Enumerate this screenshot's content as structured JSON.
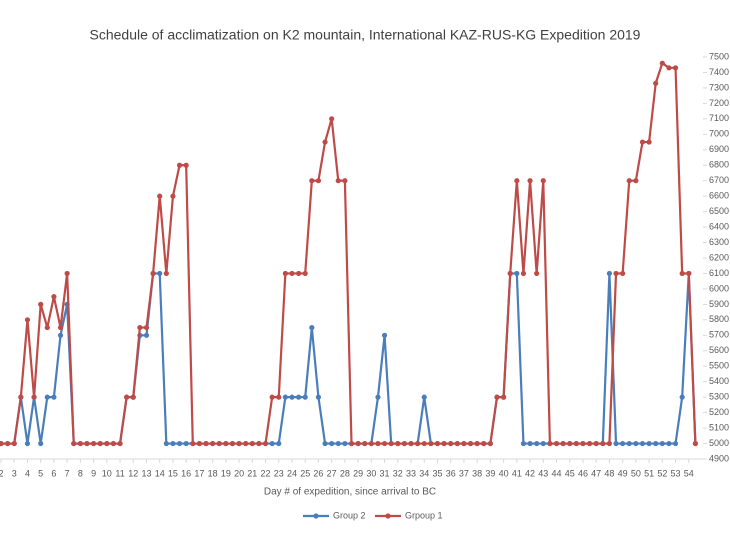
{
  "chart_data": {
    "type": "line",
    "title": "Schedule of acclimatization on K2 mountain, International KAZ-RUS-KG Expedition 2019",
    "x_label": "Day # of expedition, since arrival to BC",
    "x": [
      2,
      2.5,
      3,
      3.5,
      4,
      4.5,
      5,
      5.5,
      6,
      6.5,
      7,
      7.5,
      8,
      8.5,
      9,
      9.5,
      10,
      10.5,
      11,
      11.5,
      12,
      12.5,
      13,
      13.5,
      14,
      14.5,
      15,
      15.5,
      16,
      16.5,
      17,
      17.5,
      18,
      18.5,
      19,
      19.5,
      20,
      20.5,
      21,
      21.5,
      22,
      22.5,
      23,
      23.5,
      24,
      24.5,
      25,
      25.5,
      26,
      26.5,
      27,
      27.5,
      28,
      28.5,
      29,
      29.5,
      30,
      30.5,
      31,
      31.5,
      32,
      32.5,
      33,
      33.5,
      34,
      34.5,
      35,
      35.5,
      36,
      36.5,
      37,
      37.5,
      38,
      38.5,
      39,
      39.5,
      40,
      40.5,
      41,
      41.5,
      42,
      42.5,
      43,
      43.5,
      44,
      44.5,
      45,
      45.5,
      46,
      46.5,
      47,
      47.5,
      48,
      48.5,
      49,
      49.5,
      50,
      50.5,
      51,
      51.5,
      52,
      52.5,
      53,
      53.5,
      54,
      54.5
    ],
    "series": [
      {
        "name": "Group 2",
        "color": "#4a7ebb",
        "values": [
          5000,
          5000,
          5000,
          5300,
          5000,
          5300,
          5000,
          5300,
          5300,
          5700,
          5900,
          5000,
          5000,
          5000,
          5000,
          5000,
          5000,
          5000,
          5000,
          5300,
          5300,
          5700,
          5700,
          6100,
          6100,
          5000,
          5000,
          5000,
          5000,
          5000,
          5000,
          5000,
          5000,
          5000,
          5000,
          5000,
          5000,
          5000,
          5000,
          5000,
          5000,
          5000,
          5000,
          5300,
          5300,
          5300,
          5300,
          5750,
          5300,
          5000,
          5000,
          5000,
          5000,
          5000,
          5000,
          5000,
          5000,
          5300,
          5700,
          5000,
          5000,
          5000,
          5000,
          5000,
          5300,
          5000,
          5000,
          5000,
          5000,
          5000,
          5000,
          5000,
          5000,
          5000,
          5000,
          5300,
          5300,
          6100,
          6100,
          5000,
          5000,
          5000,
          5000,
          5000,
          5000,
          5000,
          5000,
          5000,
          5000,
          5000,
          5000,
          5000,
          6100,
          5000,
          5000,
          5000,
          5000,
          5000,
          5000,
          5000,
          5000,
          5000,
          5000,
          5300,
          6100,
          5000
        ]
      },
      {
        "name": "Grpoup 1",
        "color": "#be4b48",
        "values": [
          5000,
          5000,
          5000,
          5300,
          5800,
          5300,
          5900,
          5750,
          5950,
          5750,
          6100,
          5000,
          5000,
          5000,
          5000,
          5000,
          5000,
          5000,
          5000,
          5300,
          5300,
          5750,
          5750,
          6100,
          6600,
          6100,
          6600,
          6800,
          6800,
          5000,
          5000,
          5000,
          5000,
          5000,
          5000,
          5000,
          5000,
          5000,
          5000,
          5000,
          5000,
          5300,
          5300,
          6100,
          6100,
          6100,
          6100,
          6700,
          6700,
          6950,
          7100,
          6700,
          6700,
          5000,
          5000,
          5000,
          5000,
          5000,
          5000,
          5000,
          5000,
          5000,
          5000,
          5000,
          5000,
          5000,
          5000,
          5000,
          5000,
          5000,
          5000,
          5000,
          5000,
          5000,
          5000,
          5300,
          5300,
          6100,
          6700,
          6100,
          6700,
          6100,
          6700,
          5000,
          5000,
          5000,
          5000,
          5000,
          5000,
          5000,
          5000,
          5000,
          5000,
          6100,
          6100,
          6700,
          6700,
          6950,
          6950,
          7330,
          7460,
          7430,
          7430,
          6100,
          6100,
          5000
        ]
      }
    ],
    "xlim": [
      2,
      55
    ],
    "xticks": [
      2,
      3,
      4,
      5,
      6,
      7,
      8,
      9,
      10,
      11,
      12,
      13,
      14,
      15,
      16,
      17,
      18,
      19,
      20,
      21,
      22,
      23,
      24,
      25,
      26,
      27,
      28,
      29,
      30,
      31,
      32,
      33,
      34,
      35,
      36,
      37,
      38,
      39,
      40,
      41,
      42,
      43,
      44,
      45,
      46,
      47,
      48,
      49,
      50,
      51,
      52,
      53,
      54
    ],
    "ylim": [
      4900,
      7500
    ],
    "yticks": [
      4900,
      5000,
      5100,
      5200,
      5300,
      5400,
      5500,
      5600,
      5700,
      5800,
      5900,
      6000,
      6100,
      6200,
      6300,
      6400,
      6500,
      6600,
      6700,
      6800,
      6900,
      7000,
      7100,
      7200,
      7300,
      7400,
      7500
    ],
    "y_axis_side": "right",
    "legend": "bottom"
  }
}
